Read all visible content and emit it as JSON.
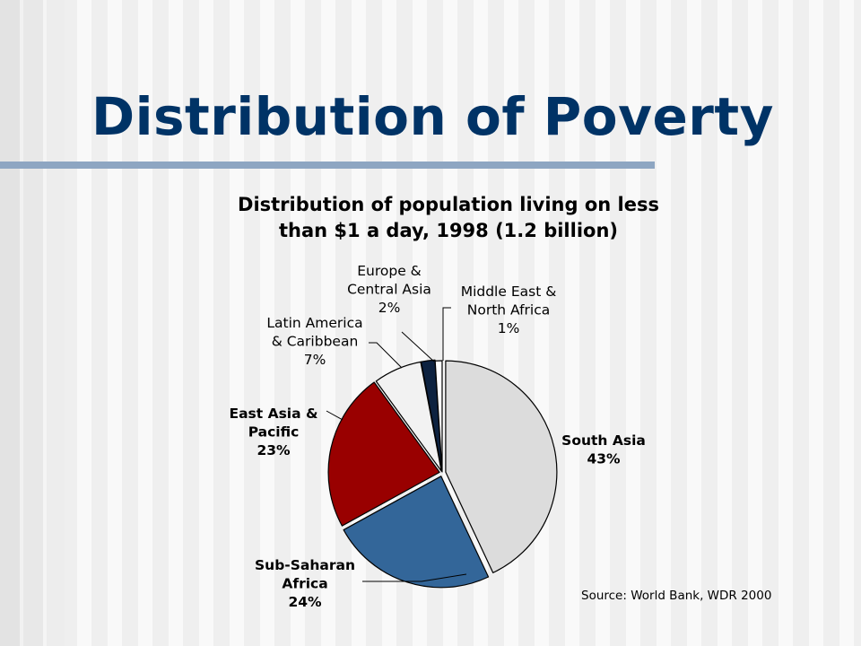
{
  "slide": {
    "title": "Distribution of Poverty",
    "source": "Source: World Bank, WDR 2000"
  },
  "chart_data": {
    "type": "pie",
    "title_lines": [
      "Distribution of population living on less",
      "than $1 a day, 1998 (1.2 billion)"
    ],
    "start_category": "South Asia",
    "direction": "clockwise",
    "slices": [
      {
        "name": "South Asia",
        "value": 43,
        "label_lines": [
          "South Asia",
          "43%"
        ],
        "color": "#dcdcdc",
        "bold": true
      },
      {
        "name": "Sub-Saharan Africa",
        "value": 24,
        "label_lines": [
          "Sub-Saharan",
          "Africa",
          "24%"
        ],
        "color": "#336699",
        "bold": true
      },
      {
        "name": "East Asia & Pacific",
        "value": 23,
        "label_lines": [
          "East Asia &",
          "Pacific",
          "23%"
        ],
        "color": "#990000",
        "bold": true
      },
      {
        "name": "Latin America & Caribbean",
        "value": 7,
        "label_lines": [
          "Latin America",
          "& Caribbean",
          "7%"
        ],
        "color": "#f2f2f2",
        "bold": false
      },
      {
        "name": "Europe & Central Asia",
        "value": 2,
        "label_lines": [
          "Europe &",
          "Central Asia",
          "2%"
        ],
        "color": "#0d2240",
        "bold": false
      },
      {
        "name": "Middle East & North Africa",
        "value": 1,
        "label_lines": [
          "Middle East &",
          "North Africa",
          "1%"
        ],
        "color": "#ffffff",
        "bold": false
      }
    ]
  }
}
